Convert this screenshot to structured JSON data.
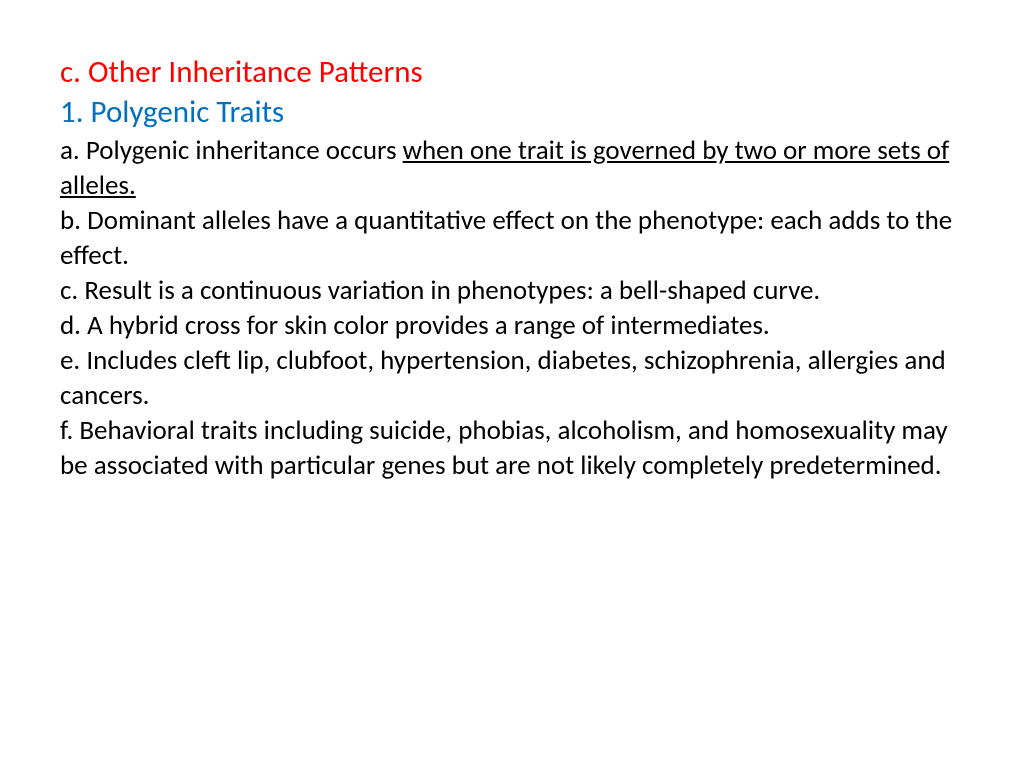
{
  "heading": {
    "text": "c. Other Inheritance Patterns",
    "color": "#ff0000",
    "fontsize": 31
  },
  "subheading": {
    "text": "1. Polygenic Traits",
    "color": "#0070c0",
    "fontsize": 31
  },
  "items": {
    "a_prefix": "a. Polygenic inheritance occurs ",
    "a_underlined": "when one trait is governed by two or more sets of alleles.",
    "b": "b. Dominant alleles have a quantitative effect on the phenotype: each adds to the effect.",
    "c": "c. Result is a continuous variation in phenotypes: a bell-shaped curve.",
    "d": "d. A hybrid cross for skin color provides a range of intermediates.",
    "e": "e. Includes cleft lip, clubfoot, hypertension, diabetes, schizophrenia, allergies and cancers.",
    "f": "f. Behavioral traits including suicide, phobias, alcoholism, and homosexuality may be associated with particular genes but are not likely completely predetermined."
  },
  "body_color": "#000000",
  "body_fontsize": 27,
  "background_color": "#ffffff"
}
